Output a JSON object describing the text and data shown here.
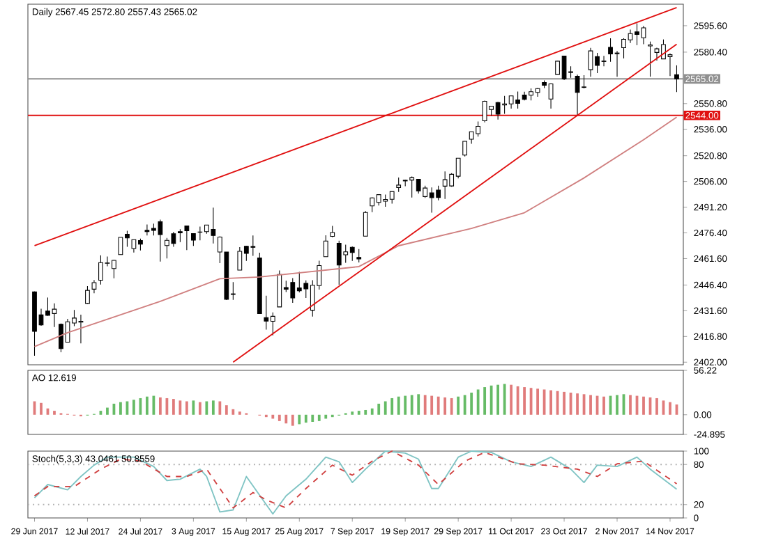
{
  "chart_data": [
    {
      "type": "candlestick",
      "title": "Daily 2567.45 2572.80 2557.43 2565.02",
      "color": "#000000",
      "tick_labels": "y",
      "categories": [
        null,
        null,
        null,
        null,
        null,
        null,
        null,
        null,
        null,
        null,
        null,
        null,
        null,
        null,
        null,
        null,
        null,
        null,
        null,
        null,
        null,
        null,
        null,
        null,
        null,
        null,
        null,
        null,
        null,
        null,
        null,
        null,
        null,
        null,
        null,
        null,
        null,
        null,
        null,
        null,
        null,
        null,
        null,
        null,
        null,
        null,
        null,
        null,
        null,
        null,
        null,
        null,
        null,
        null,
        null,
        null,
        null,
        null,
        null,
        null,
        null,
        null,
        null,
        null,
        null,
        null,
        null,
        null,
        null,
        null,
        null,
        null,
        null,
        null,
        null,
        null,
        null,
        null,
        null,
        null,
        null,
        null,
        null,
        null,
        null,
        null,
        null,
        null,
        null,
        null,
        null,
        null,
        null,
        null,
        null,
        null,
        null,
        null
      ],
      "ohlc": [
        [
          2442.4,
          2442.7,
          2405.7,
          2419.7
        ],
        [
          2429.2,
          2432.7,
          2422.9,
          2423.4
        ],
        [
          2431.4,
          2439.2,
          2428.7,
          2429.0
        ],
        [
          2430.0,
          2435.8,
          2422.2,
          2432.5
        ],
        [
          2423.8,
          2424.3,
          2407.7,
          2409.8
        ],
        [
          2413.5,
          2426.9,
          2413.5,
          2425.2
        ],
        [
          2424.5,
          2432.0,
          2422.7,
          2427.4
        ],
        [
          2425.0,
          2429.3,
          2412.8,
          2425.5
        ],
        [
          2435.8,
          2445.8,
          2435.6,
          2443.3
        ],
        [
          2444.0,
          2449.3,
          2441.7,
          2447.8
        ],
        [
          2449.2,
          2463.5,
          2446.7,
          2459.3
        ],
        [
          2458.9,
          2462.8,
          2457.2,
          2459.1
        ],
        [
          2455.9,
          2460.9,
          2450.3,
          2460.6
        ],
        [
          2463.9,
          2473.8,
          2463.9,
          2473.8
        ],
        [
          2475.6,
          2477.6,
          2468.4,
          2473.5
        ],
        [
          2467.4,
          2472.5,
          2465.1,
          2472.5
        ],
        [
          2472.0,
          2473.1,
          2466.3,
          2469.9
        ],
        [
          2477.9,
          2481.2,
          2474.9,
          2477.1
        ],
        [
          2479.0,
          2481.7,
          2474.9,
          2477.8
        ],
        [
          2482.8,
          2484.0,
          2459.9,
          2475.4
        ],
        [
          2469.1,
          2473.5,
          2461.7,
          2472.1
        ],
        [
          2475.9,
          2477.0,
          2468.4,
          2470.3
        ],
        [
          2477.1,
          2478.5,
          2471.1,
          2476.4
        ],
        [
          2480.4,
          2480.4,
          2466.5,
          2477.6
        ],
        [
          2476.0,
          2476.0,
          2468.9,
          2472.2
        ],
        [
          2476.9,
          2480.0,
          2472.1,
          2476.8
        ],
        [
          2477.1,
          2480.9,
          2475.9,
          2480.9
        ],
        [
          2478.4,
          2490.9,
          2470.3,
          2474.9
        ],
        [
          2465.4,
          2474.4,
          2459.0,
          2474.0
        ],
        [
          2465.4,
          2465.4,
          2437.8,
          2438.2
        ],
        [
          2441.0,
          2448.1,
          2437.9,
          2441.3
        ],
        [
          2455.0,
          2468.2,
          2455.0,
          2465.8
        ],
        [
          2468.7,
          2468.9,
          2460.3,
          2464.6
        ],
        [
          2468.6,
          2474.9,
          2463.2,
          2468.1
        ],
        [
          2462.0,
          2465.0,
          2430.0,
          2430.0
        ],
        [
          2427.6,
          2440.3,
          2420.7,
          2425.6
        ],
        [
          2425.5,
          2430.6,
          2417.4,
          2428.4
        ],
        [
          2433.8,
          2454.8,
          2433.7,
          2452.5
        ],
        [
          2444.9,
          2448.9,
          2442.4,
          2444.0
        ],
        [
          2447.9,
          2450.4,
          2436.2,
          2439.0
        ],
        [
          2444.7,
          2454.0,
          2442.2,
          2443.1
        ],
        [
          2447.4,
          2449.1,
          2439.0,
          2444.2
        ],
        [
          2431.9,
          2449.2,
          2428.2,
          2446.3
        ],
        [
          2446.1,
          2460.4,
          2443.8,
          2457.6
        ],
        [
          2462.7,
          2475.0,
          2462.7,
          2471.7
        ],
        [
          2474.4,
          2480.4,
          2473.9,
          2476.6
        ],
        [
          2470.4,
          2471.9,
          2446.6,
          2457.9
        ],
        [
          2463.8,
          2469.6,
          2459.2,
          2465.5
        ],
        [
          2468.1,
          2468.6,
          2460.3,
          2465.1
        ],
        [
          2462.3,
          2467.1,
          2459.4,
          2461.4
        ],
        [
          2474.5,
          2488.9,
          2474.5,
          2488.1
        ],
        [
          2491.9,
          2496.8,
          2488.3,
          2496.5
        ],
        [
          2493.9,
          2498.4,
          2492.1,
          2498.4
        ],
        [
          2494.6,
          2498.4,
          2491.4,
          2495.6
        ],
        [
          2495.7,
          2500.2,
          2493.2,
          2500.2
        ],
        [
          2502.5,
          2508.3,
          2499.9,
          2503.9
        ],
        [
          2506.3,
          2507.0,
          2503.2,
          2506.7
        ],
        [
          2506.8,
          2508.9,
          2496.7,
          2508.2
        ],
        [
          2507.2,
          2507.2,
          2499.0,
          2500.6
        ],
        [
          2497.3,
          2503.5,
          2496.5,
          2502.2
        ],
        [
          2499.4,
          2502.5,
          2488.0,
          2496.7
        ],
        [
          2501.0,
          2503.5,
          2495.1,
          2496.8
        ],
        [
          2503.3,
          2511.8,
          2495.9,
          2507.0
        ],
        [
          2503.4,
          2510.8,
          2502.9,
          2510.1
        ],
        [
          2509.0,
          2519.4,
          2507.8,
          2519.4
        ],
        [
          2521.2,
          2529.2,
          2520.4,
          2529.1
        ],
        [
          2530.3,
          2534.7,
          2527.7,
          2534.6
        ],
        [
          2533.5,
          2540.5,
          2531.8,
          2537.7
        ],
        [
          2540.9,
          2552.5,
          2540.0,
          2552.1
        ],
        [
          2547.4,
          2549.4,
          2543.8,
          2549.3
        ],
        [
          2551.4,
          2551.8,
          2541.6,
          2544.7
        ],
        [
          2550.0,
          2555.2,
          2544.9,
          2550.6
        ],
        [
          2550.6,
          2555.2,
          2547.9,
          2555.2
        ],
        [
          2552.9,
          2557.7,
          2547.9,
          2550.9
        ],
        [
          2555.7,
          2557.6,
          2552.6,
          2553.2
        ],
        [
          2555.6,
          2559.5,
          2552.6,
          2557.6
        ],
        [
          2557.2,
          2559.7,
          2554.7,
          2559.4
        ],
        [
          2562.9,
          2564.1,
          2559.7,
          2561.3
        ],
        [
          2553.4,
          2562.4,
          2547.9,
          2562.1
        ],
        [
          2567.6,
          2575.4,
          2567.6,
          2575.2
        ],
        [
          2578.1,
          2578.3,
          2564.3,
          2565.0
        ],
        [
          2568.7,
          2572.2,
          2565.6,
          2569.1
        ],
        [
          2566.5,
          2567.4,
          2544.0,
          2557.2
        ],
        [
          2560.1,
          2567.1,
          2559.5,
          2560.4
        ],
        [
          2570.3,
          2582.9,
          2566.2,
          2581.1
        ],
        [
          2577.8,
          2580.0,
          2568.3,
          2572.8
        ],
        [
          2575.0,
          2578.3,
          2572.2,
          2575.3
        ],
        [
          2583.2,
          2588.4,
          2574.9,
          2579.4
        ],
        [
          2579.5,
          2581.1,
          2566.2,
          2579.9
        ],
        [
          2583.0,
          2588.4,
          2576.8,
          2587.8
        ],
        [
          2587.5,
          2593.4,
          2585.7,
          2591.1
        ],
        [
          2592.1,
          2597.0,
          2584.4,
          2590.6
        ],
        [
          2588.7,
          2595.5,
          2585.0,
          2594.4
        ],
        [
          2584.0,
          2586.5,
          2566.3,
          2584.6
        ],
        [
          2580.2,
          2583.0,
          2575.6,
          2582.3
        ],
        [
          2576.5,
          2587.7,
          2576.5,
          2584.8
        ],
        [
          2577.8,
          2579.7,
          2566.6,
          2578.9
        ],
        [
          2567.45,
          2572.8,
          2557.43,
          2565.02
        ]
      ],
      "series": [
        {
          "type": "line",
          "color": "#d08080",
          "values": [
            2411,
            null,
            null,
            null,
            null,
            2419,
            null,
            null,
            null,
            null,
            null,
            null,
            null,
            null,
            null,
            null,
            null,
            null,
            null,
            2437,
            null,
            null,
            null,
            null,
            null,
            null,
            null,
            null,
            2450,
            null,
            null,
            null,
            null,
            null,
            2451,
            null,
            null,
            null,
            null,
            null,
            null,
            null,
            null,
            null,
            null,
            null,
            null,
            null,
            null,
            2457,
            null,
            null,
            null,
            null,
            null,
            2469,
            null,
            null,
            null,
            null,
            null,
            null,
            null,
            null,
            null,
            null,
            2479,
            null,
            null,
            null,
            null,
            null,
            null,
            null,
            2488,
            null,
            null,
            null,
            null,
            null,
            null,
            null,
            null,
            2508,
            null,
            null,
            null,
            null,
            null,
            null,
            null,
            null,
            2530,
            null,
            null,
            null,
            null,
            2543
          ]
        },
        {
          "type": "line",
          "color": "#e01010",
          "values": [
            2469,
            null,
            null,
            null,
            null,
            null,
            null,
            null,
            null,
            null,
            null,
            null,
            null,
            null,
            null,
            null,
            null,
            null,
            null,
            null,
            null,
            null,
            null,
            null,
            null,
            null,
            null,
            null,
            null,
            null,
            null,
            null,
            null,
            null,
            null,
            null,
            null,
            null,
            null,
            null,
            null,
            null,
            null,
            null,
            null,
            null,
            null,
            null,
            null,
            null,
            null,
            null,
            null,
            null,
            null,
            null,
            null,
            null,
            null,
            null,
            null,
            null,
            null,
            null,
            null,
            null,
            null,
            null,
            null,
            null,
            null,
            null,
            null,
            null,
            null,
            null,
            null,
            null,
            null,
            null,
            null,
            null,
            null,
            null,
            null,
            null,
            null,
            null,
            null,
            null,
            null,
            null,
            null,
            null,
            null,
            null,
            null,
            2606
          ]
        },
        {
          "type": "line",
          "color": "#e01010",
          "values": [
            null,
            null,
            null,
            null,
            null,
            null,
            null,
            null,
            null,
            null,
            null,
            null,
            null,
            null,
            null,
            null,
            null,
            null,
            null,
            null,
            null,
            null,
            null,
            null,
            null,
            null,
            null,
            null,
            null,
            null,
            2402,
            null,
            null,
            null,
            null,
            null,
            null,
            null,
            null,
            null,
            null,
            null,
            null,
            null,
            null,
            null,
            null,
            null,
            null,
            null,
            null,
            null,
            null,
            null,
            null,
            null,
            null,
            null,
            null,
            null,
            null,
            null,
            null,
            null,
            null,
            null,
            null,
            null,
            null,
            null,
            null,
            null,
            null,
            null,
            null,
            null,
            null,
            null,
            null,
            null,
            null,
            null,
            null,
            null,
            null,
            null,
            null,
            null,
            null,
            null,
            null,
            null,
            null,
            null,
            null,
            null,
            null,
            2585
          ]
        }
      ],
      "ylim": [
        2400.5,
        2608
      ],
      "yticks": [
        {
          "value": 2402.0,
          "label": "2402.00"
        },
        {
          "value": 2416.8,
          "label": "2416.80"
        },
        {
          "value": 2431.6,
          "label": "2431.60"
        },
        {
          "value": 2446.4,
          "label": "2446.40"
        },
        {
          "value": 2461.6,
          "label": "2461.60"
        },
        {
          "value": 2476.4,
          "label": "2476.40"
        },
        {
          "value": 2491.2,
          "label": "2491.20"
        },
        {
          "value": 2506.0,
          "label": "2506.00"
        },
        {
          "value": 2520.8,
          "label": "2520.80"
        },
        {
          "value": 2536.0,
          "label": "2536.00"
        },
        {
          "value": 2550.8,
          "label": "2550.80"
        },
        {
          "value": 2580.4,
          "label": "2580.40"
        },
        {
          "value": 2595.6,
          "label": "2595.60"
        }
      ],
      "ref_lines": [
        {
          "axis": "y",
          "value": 2544.0,
          "label": "2544.00",
          "color": "#e01010"
        },
        {
          "axis": "y",
          "value": 2565.02,
          "label": "2565.02",
          "color": "#909090"
        }
      ]
    },
    {
      "type": "bar",
      "title": "AO 12.619",
      "tick_labels": "y",
      "categories": [
        null,
        null,
        null,
        null,
        null,
        null,
        null,
        null,
        null,
        null,
        null,
        null,
        null,
        null,
        null,
        null,
        null,
        null,
        null,
        null,
        null,
        null,
        null,
        null,
        null,
        null,
        null,
        null,
        null,
        null,
        null,
        null,
        null,
        null,
        null,
        null,
        null,
        null,
        null,
        null,
        null,
        null,
        null,
        null,
        null,
        null,
        null,
        null,
        null,
        null,
        null,
        null,
        null,
        null,
        null,
        null,
        null,
        null,
        null,
        null,
        null,
        null,
        null,
        null,
        null,
        null,
        null,
        null,
        null,
        null,
        null,
        null,
        null,
        null,
        null,
        null,
        null,
        null,
        null,
        null,
        null,
        null,
        null,
        null,
        null,
        null,
        null,
        null,
        null,
        null,
        null,
        null,
        null,
        null,
        null,
        null,
        null,
        null
      ],
      "values": [
        17,
        15,
        8,
        5,
        2,
        1,
        -1,
        -2,
        -1,
        1,
        5,
        9,
        14,
        16,
        17,
        19,
        21,
        23,
        24,
        22,
        21,
        20,
        18,
        17,
        18,
        16,
        17,
        18,
        17,
        12,
        7,
        4,
        2,
        0,
        -1,
        -3,
        -5,
        -8,
        -11,
        -14,
        -12,
        -10,
        -9,
        -8,
        -5,
        -3,
        -1,
        2,
        4,
        5,
        6,
        8,
        14,
        17,
        21,
        23,
        24,
        25,
        26,
        25,
        24,
        23,
        22,
        21,
        23,
        25,
        28,
        32,
        35,
        37,
        38,
        39,
        38,
        36,
        35,
        34,
        33,
        32,
        31,
        30,
        29,
        28,
        27,
        26,
        25,
        24,
        23,
        24,
        25,
        26,
        25,
        24,
        23,
        22,
        21,
        18,
        16,
        13
      ],
      "colors": [
        "#e07b7b",
        "#e07b7b",
        "#e07b7b",
        "#e07b7b",
        "#e07b7b",
        "#e07b7b",
        "#e07b7b",
        "#e07b7b",
        "#66bb66",
        "#66bb66",
        "#66bb66",
        "#66bb66",
        "#66bb66",
        "#66bb66",
        "#66bb66",
        "#66bb66",
        "#66bb66",
        "#66bb66",
        "#66bb66",
        "#e07b7b",
        "#e07b7b",
        "#e07b7b",
        "#e07b7b",
        "#e07b7b",
        "#66bb66",
        "#e07b7b",
        "#66bb66",
        "#66bb66",
        "#e07b7b",
        "#e07b7b",
        "#e07b7b",
        "#e07b7b",
        "#e07b7b",
        "#e07b7b",
        "#e07b7b",
        "#e07b7b",
        "#e07b7b",
        "#e07b7b",
        "#e07b7b",
        "#e07b7b",
        "#66bb66",
        "#66bb66",
        "#66bb66",
        "#66bb66",
        "#66bb66",
        "#66bb66",
        "#66bb66",
        "#66bb66",
        "#66bb66",
        "#66bb66",
        "#66bb66",
        "#66bb66",
        "#66bb66",
        "#66bb66",
        "#66bb66",
        "#66bb66",
        "#66bb66",
        "#66bb66",
        "#66bb66",
        "#e07b7b",
        "#e07b7b",
        "#e07b7b",
        "#e07b7b",
        "#e07b7b",
        "#66bb66",
        "#66bb66",
        "#66bb66",
        "#66bb66",
        "#66bb66",
        "#66bb66",
        "#66bb66",
        "#66bb66",
        "#e07b7b",
        "#e07b7b",
        "#e07b7b",
        "#e07b7b",
        "#e07b7b",
        "#e07b7b",
        "#e07b7b",
        "#e07b7b",
        "#e07b7b",
        "#e07b7b",
        "#e07b7b",
        "#e07b7b",
        "#e07b7b",
        "#e07b7b",
        "#e07b7b",
        "#66bb66",
        "#66bb66",
        "#66bb66",
        "#e07b7b",
        "#e07b7b",
        "#e07b7b",
        "#e07b7b",
        "#e07b7b",
        "#e07b7b",
        "#e07b7b",
        "#e07b7b"
      ],
      "ylim": [
        -24.895,
        56.22
      ],
      "yticks": [
        {
          "value": -24.895,
          "label": "-24.895"
        },
        {
          "value": 0,
          "label": "0.00"
        },
        {
          "value": 56.22,
          "label": "56.22"
        }
      ]
    },
    {
      "type": "line",
      "title": "Stoch(5,3,3) 43.0461 50.8559",
      "categories": [
        "29 Jun 2017",
        null,
        null,
        null,
        null,
        null,
        null,
        null,
        "12 Jul 2017",
        null,
        null,
        null,
        null,
        null,
        null,
        null,
        "24 Jul 2017",
        null,
        null,
        null,
        null,
        null,
        null,
        null,
        "3 Aug 2017",
        null,
        null,
        null,
        null,
        null,
        null,
        null,
        "15 Aug 2017",
        null,
        null,
        null,
        null,
        null,
        null,
        null,
        "25 Aug 2017",
        null,
        null,
        null,
        null,
        null,
        null,
        null,
        "7 Sep 2017",
        null,
        null,
        null,
        null,
        null,
        null,
        null,
        "19 Sep 2017",
        null,
        null,
        null,
        null,
        null,
        null,
        null,
        "29 Sep 2017",
        null,
        null,
        null,
        null,
        null,
        null,
        null,
        "11 Oct 2017",
        null,
        null,
        null,
        null,
        null,
        null,
        null,
        "23 Oct 2017",
        null,
        null,
        null,
        null,
        null,
        null,
        null,
        "2 Nov 2017",
        null,
        null,
        null,
        null,
        null,
        null,
        null,
        "14 Nov 2017",
        null
      ],
      "series": [
        {
          "color": "#7fc4c4",
          "line_style": "solid",
          "values": [
            30,
            null,
            50,
            null,
            null,
            42,
            null,
            62,
            null,
            79,
            null,
            91,
            null,
            null,
            null,
            91,
            null,
            null,
            77,
            null,
            56,
            null,
            58,
            null,
            null,
            73,
            62,
            null,
            9,
            null,
            12,
            null,
            62,
            null,
            null,
            null,
            6,
            null,
            33,
            null,
            null,
            58,
            null,
            null,
            91,
            null,
            84,
            null,
            53,
            null,
            73,
            null,
            null,
            100,
            null,
            null,
            97,
            null,
            88,
            null,
            44,
            44,
            null,
            null,
            91,
            null,
            100,
            null,
            null,
            98,
            null,
            null,
            84,
            null,
            null,
            77,
            null,
            null,
            91,
            null,
            null,
            73,
            null,
            53,
            null,
            79,
            null,
            null,
            77,
            null,
            null,
            91,
            null,
            73,
            null,
            null,
            null,
            43.0
          ]
        },
        {
          "color": "#d04040",
          "line_style": "dashed",
          "values": [
            33,
            null,
            47,
            null,
            null,
            null,
            47,
            null,
            null,
            null,
            73,
            null,
            null,
            88,
            null,
            null,
            85,
            null,
            null,
            null,
            62,
            null,
            null,
            62,
            null,
            null,
            73,
            null,
            null,
            null,
            15,
            null,
            null,
            38,
            null,
            27,
            null,
            null,
            15,
            null,
            null,
            44,
            null,
            null,
            null,
            79,
            null,
            null,
            64,
            null,
            null,
            85,
            null,
            null,
            100,
            null,
            null,
            null,
            79,
            null,
            null,
            50,
            null,
            null,
            null,
            85,
            null,
            null,
            98,
            null,
            null,
            null,
            null,
            81,
            null,
            null,
            null,
            79,
            null,
            null,
            null,
            null,
            73,
            null,
            null,
            62,
            null,
            null,
            81,
            null,
            null,
            null,
            85,
            null,
            null,
            null,
            null,
            51
          ]
        }
      ],
      "ylim": [
        0,
        100
      ],
      "yticks": [
        0,
        20,
        80,
        100
      ],
      "ref_lines": [
        {
          "axis": "y",
          "value": 20,
          "color": "#b0b0b0",
          "line_style": "dotted"
        },
        {
          "axis": "y",
          "value": 80,
          "color": "#b0b0b0",
          "line_style": "dotted"
        }
      ]
    }
  ]
}
